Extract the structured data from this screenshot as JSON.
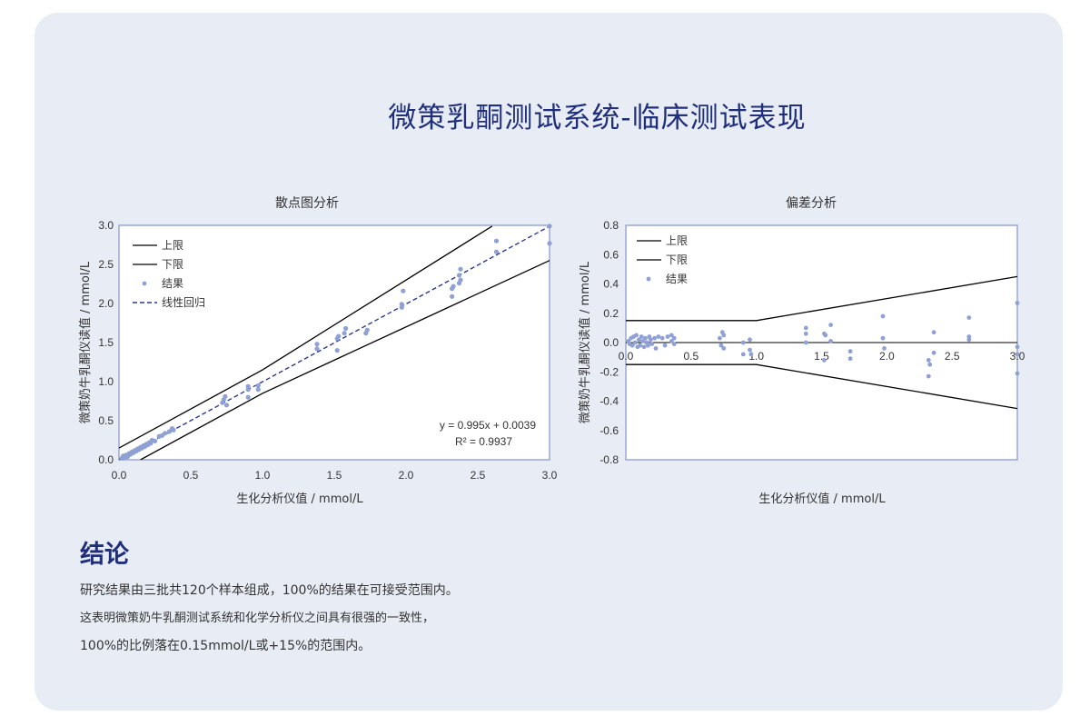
{
  "page": {
    "title": "微策乳酮测试系统-临床测试表现",
    "conclusion_heading": "结论",
    "conclusion_lines": [
      "研究结果由三批共120个样本组成，100%的结果在可接受范围内。",
      "这表明微策奶牛乳酮测试系统和化学分析仪之间具有很强的一致性，",
      "100%的比例落在0.15mmol/L或+15%的范围内。"
    ]
  },
  "colors": {
    "title": "#1f2f7a",
    "card_bg": "#e8ecf5",
    "plot_border": "#9aa7d6",
    "points": "#8fa0d4",
    "regression": "#2b3a8a",
    "limits": "#000000"
  },
  "chart_data": [
    {
      "type": "scatter",
      "title": "散点图分析",
      "xlabel": "生化分析仪值 / mmol/L",
      "ylabel": "微策奶牛乳酮仪读值 / mmol/L",
      "xlim": [
        0,
        3.0
      ],
      "ylim": [
        0,
        3.0
      ],
      "xticks": [
        "0.0",
        "0.5",
        "1.0",
        "1.5",
        "2.0",
        "2.5",
        "3.0"
      ],
      "yticks": [
        "0.0",
        "0.5",
        "1.0",
        "1.5",
        "2.0",
        "2.5",
        "3.0"
      ],
      "legend": [
        "上限",
        "下限",
        "结果",
        "线性回归"
      ],
      "legend_position": "top-left",
      "equation": "y = 0.995x + 0.0039",
      "r_squared": "R² = 0.9937",
      "upper_limit": [
        [
          0,
          0.15
        ],
        [
          1.0,
          1.15
        ],
        [
          2.6,
          2.99
        ]
      ],
      "lower_limit": [
        [
          0.15,
          0
        ],
        [
          1.0,
          0.85
        ],
        [
          3.0,
          2.55
        ]
      ],
      "regression": [
        [
          0,
          0.0039
        ],
        [
          3.0,
          2.9889
        ]
      ],
      "points": [
        [
          0.02,
          0.02
        ],
        [
          0.03,
          0.05
        ],
        [
          0.04,
          0.03
        ],
        [
          0.05,
          0.06
        ],
        [
          0.06,
          0.04
        ],
        [
          0.07,
          0.08
        ],
        [
          0.08,
          0.07
        ],
        [
          0.09,
          0.1
        ],
        [
          0.1,
          0.09
        ],
        [
          0.11,
          0.12
        ],
        [
          0.12,
          0.11
        ],
        [
          0.13,
          0.14
        ],
        [
          0.14,
          0.13
        ],
        [
          0.15,
          0.16
        ],
        [
          0.16,
          0.15
        ],
        [
          0.17,
          0.18
        ],
        [
          0.18,
          0.17
        ],
        [
          0.19,
          0.2
        ],
        [
          0.2,
          0.19
        ],
        [
          0.21,
          0.22
        ],
        [
          0.22,
          0.21
        ],
        [
          0.23,
          0.25
        ],
        [
          0.25,
          0.24
        ],
        [
          0.28,
          0.3
        ],
        [
          0.3,
          0.31
        ],
        [
          0.32,
          0.34
        ],
        [
          0.35,
          0.36
        ],
        [
          0.37,
          0.4
        ],
        [
          0.38,
          0.38
        ],
        [
          0.72,
          0.73
        ],
        [
          0.73,
          0.77
        ],
        [
          0.74,
          0.81
        ],
        [
          0.75,
          0.7
        ],
        [
          0.9,
          0.9
        ],
        [
          0.9,
          0.94
        ],
        [
          0.9,
          0.8
        ],
        [
          0.97,
          0.9
        ],
        [
          0.97,
          0.95
        ],
        [
          1.38,
          1.42
        ],
        [
          1.38,
          1.48
        ],
        [
          1.52,
          1.4
        ],
        [
          1.52,
          1.55
        ],
        [
          1.53,
          1.58
        ],
        [
          1.57,
          1.62
        ],
        [
          1.58,
          1.68
        ],
        [
          1.72,
          1.62
        ],
        [
          1.73,
          1.66
        ],
        [
          1.97,
          1.95
        ],
        [
          1.97,
          1.99
        ],
        [
          1.98,
          2.16
        ],
        [
          2.32,
          2.09
        ],
        [
          2.32,
          2.19
        ],
        [
          2.33,
          2.22
        ],
        [
          2.37,
          2.26
        ],
        [
          2.37,
          2.36
        ],
        [
          2.38,
          2.3
        ],
        [
          2.38,
          2.44
        ],
        [
          2.63,
          2.8
        ],
        [
          2.63,
          2.66
        ],
        [
          3.0,
          2.99
        ],
        [
          3.0,
          2.77
        ]
      ]
    },
    {
      "type": "scatter",
      "title": "偏差分析",
      "xlabel": "生化分析仪值 / mmol/L",
      "ylabel": "微策奶牛乳酮仪读值 / mmol/L",
      "xlim": [
        0,
        3.0
      ],
      "ylim": [
        -0.8,
        0.8
      ],
      "xticks": [
        "0.0",
        "0.5",
        "1.0",
        "1.5",
        "2.0",
        "2.5",
        "3.0"
      ],
      "yticks": [
        "0.8",
        "0.6",
        "0.4",
        "0.2",
        "0.0",
        "-0.2",
        "-0.4",
        "-0.6",
        "-0.8"
      ],
      "legend": [
        "上限",
        "下限",
        "结果"
      ],
      "legend_position": "top-left",
      "upper_limit": [
        [
          0,
          0.15
        ],
        [
          1.0,
          0.15
        ],
        [
          3.0,
          0.45
        ]
      ],
      "lower_limit": [
        [
          0,
          -0.15
        ],
        [
          1.0,
          -0.15
        ],
        [
          3.0,
          -0.45
        ]
      ],
      "points": [
        [
          0.02,
          0.01
        ],
        [
          0.03,
          -0.01
        ],
        [
          0.04,
          0.03
        ],
        [
          0.05,
          -0.02
        ],
        [
          0.06,
          0.04
        ],
        [
          0.07,
          0.0
        ],
        [
          0.08,
          0.05
        ],
        [
          0.09,
          -0.03
        ],
        [
          0.1,
          0.02
        ],
        [
          0.11,
          -0.02
        ],
        [
          0.12,
          0.04
        ],
        [
          0.13,
          0.01
        ],
        [
          0.14,
          -0.03
        ],
        [
          0.15,
          0.03
        ],
        [
          0.16,
          0.0
        ],
        [
          0.17,
          -0.02
        ],
        [
          0.18,
          0.04
        ],
        [
          0.19,
          0.02
        ],
        [
          0.2,
          -0.01
        ],
        [
          0.22,
          0.03
        ],
        [
          0.23,
          -0.04
        ],
        [
          0.25,
          0.04
        ],
        [
          0.28,
          0.03
        ],
        [
          0.3,
          -0.02
        ],
        [
          0.32,
          0.04
        ],
        [
          0.35,
          0.05
        ],
        [
          0.35,
          0.01
        ],
        [
          0.37,
          -0.01
        ],
        [
          0.37,
          0.03
        ],
        [
          0.72,
          0.03
        ],
        [
          0.73,
          -0.02
        ],
        [
          0.74,
          0.07
        ],
        [
          0.75,
          0.05
        ],
        [
          0.75,
          -0.04
        ],
        [
          0.9,
          0.0
        ],
        [
          0.9,
          -0.08
        ],
        [
          0.95,
          0.02
        ],
        [
          0.95,
          -0.05
        ],
        [
          0.96,
          -0.08
        ],
        [
          1.38,
          0.1
        ],
        [
          1.38,
          0.06
        ],
        [
          1.38,
          0.0
        ],
        [
          1.52,
          0.06
        ],
        [
          1.52,
          -0.12
        ],
        [
          1.53,
          0.05
        ],
        [
          1.57,
          0.12
        ],
        [
          1.57,
          0.01
        ],
        [
          1.72,
          -0.06
        ],
        [
          1.72,
          -0.11
        ],
        [
          1.97,
          0.18
        ],
        [
          1.97,
          0.03
        ],
        [
          1.98,
          -0.04
        ],
        [
          2.32,
          -0.23
        ],
        [
          2.32,
          -0.12
        ],
        [
          2.33,
          -0.15
        ],
        [
          2.36,
          0.07
        ],
        [
          2.36,
          -0.07
        ],
        [
          2.63,
          0.17
        ],
        [
          2.63,
          0.04
        ],
        [
          2.63,
          0.02
        ],
        [
          3.0,
          0.27
        ],
        [
          3.0,
          -0.03
        ],
        [
          3.0,
          -0.08
        ],
        [
          3.0,
          -0.21
        ]
      ]
    }
  ]
}
